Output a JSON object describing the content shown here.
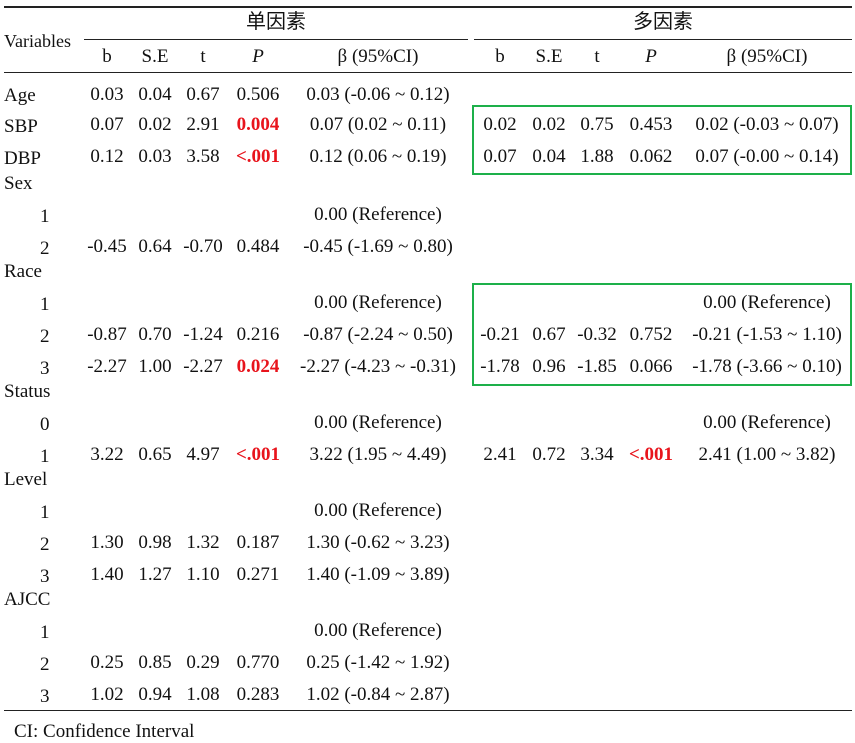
{
  "header": {
    "univariate": "单因素",
    "multivariate": "多因素",
    "variables": "Variables",
    "columns": [
      "b",
      "S.E",
      "t",
      "P",
      "β (95%CI)"
    ]
  },
  "rows": [
    {
      "label": "Age",
      "level": false,
      "u": [
        "0.03",
        "0.04",
        "0.67",
        "0.506",
        "0.03 (-0.06 ~ 0.12)"
      ],
      "u_sig": false,
      "m": null
    },
    {
      "label": "SBP",
      "level": false,
      "u": [
        "0.07",
        "0.02",
        "2.91",
        "0.004",
        "0.07 (0.02 ~ 0.11)"
      ],
      "u_sig": true,
      "m": [
        "0.02",
        "0.02",
        "0.75",
        "0.453",
        "0.02 (-0.03 ~ 0.07)"
      ],
      "m_sig": false
    },
    {
      "label": "DBP",
      "level": false,
      "u": [
        "0.12",
        "0.03",
        "3.58",
        "<.001",
        "0.12 (0.06 ~ 0.19)"
      ],
      "u_sig": true,
      "m": [
        "0.07",
        "0.04",
        "1.88",
        "0.062",
        "0.07 (-0.00 ~ 0.14)"
      ],
      "m_sig": false
    },
    {
      "label": "Sex",
      "level": false,
      "u": null,
      "m": null
    },
    {
      "label": "1",
      "level": true,
      "u_ref": "0.00 (Reference)",
      "m": null
    },
    {
      "label": "2",
      "level": true,
      "u": [
        "-0.45",
        "0.64",
        "-0.70",
        "0.484",
        "-0.45 (-1.69 ~ 0.80)"
      ],
      "u_sig": false,
      "m": null
    },
    {
      "label": "Race",
      "level": false,
      "u": null,
      "m": null
    },
    {
      "label": "1",
      "level": true,
      "u_ref": "0.00 (Reference)",
      "m_ref": "0.00 (Reference)"
    },
    {
      "label": "2",
      "level": true,
      "u": [
        "-0.87",
        "0.70",
        "-1.24",
        "0.216",
        "-0.87 (-2.24 ~ 0.50)"
      ],
      "u_sig": false,
      "m": [
        "-0.21",
        "0.67",
        "-0.32",
        "0.752",
        "-0.21 (-1.53 ~ 1.10)"
      ],
      "m_sig": false
    },
    {
      "label": "3",
      "level": true,
      "u": [
        "-2.27",
        "1.00",
        "-2.27",
        "0.024",
        "-2.27 (-4.23 ~ -0.31)"
      ],
      "u_sig": true,
      "m": [
        "-1.78",
        "0.96",
        "-1.85",
        "0.066",
        "-1.78 (-3.66 ~ 0.10)"
      ],
      "m_sig": false
    },
    {
      "label": "Status",
      "level": false,
      "u": null,
      "m": null
    },
    {
      "label": "0",
      "level": true,
      "u_ref": "0.00 (Reference)",
      "m_ref": "0.00 (Reference)"
    },
    {
      "label": "1",
      "level": true,
      "u": [
        "3.22",
        "0.65",
        "4.97",
        "<.001",
        "3.22 (1.95 ~ 4.49)"
      ],
      "u_sig": true,
      "m": [
        "2.41",
        "0.72",
        "3.34",
        "<.001",
        "2.41 (1.00 ~ 3.82)"
      ],
      "m_sig": true
    },
    {
      "label": "Level",
      "level": false,
      "u": null,
      "m": null
    },
    {
      "label": "1",
      "level": true,
      "u_ref": "0.00 (Reference)",
      "m": null
    },
    {
      "label": "2",
      "level": true,
      "u": [
        "1.30",
        "0.98",
        "1.32",
        "0.187",
        "1.30 (-0.62 ~ 3.23)"
      ],
      "u_sig": false,
      "m": null
    },
    {
      "label": "3",
      "level": true,
      "u": [
        "1.40",
        "1.27",
        "1.10",
        "0.271",
        "1.40 (-1.09 ~ 3.89)"
      ],
      "u_sig": false,
      "m": null
    },
    {
      "label": "AJCC",
      "level": false,
      "u": null,
      "m": null
    },
    {
      "label": "1",
      "level": true,
      "u_ref": "0.00 (Reference)",
      "m": null
    },
    {
      "label": "2",
      "level": true,
      "u": [
        "0.25",
        "0.85",
        "0.29",
        "0.770",
        "0.25 (-1.42 ~ 1.92)"
      ],
      "u_sig": false,
      "m": null
    },
    {
      "label": "3",
      "level": true,
      "u": [
        "1.02",
        "0.94",
        "1.08",
        "0.283",
        "1.02 (-0.84 ~ 2.87)"
      ],
      "u_sig": false,
      "m": null
    }
  ],
  "footnote": "CI: Confidence Interval",
  "colors": {
    "significant": "#e8141c",
    "highlight_box": "#1db04a",
    "rule": "#222222"
  }
}
